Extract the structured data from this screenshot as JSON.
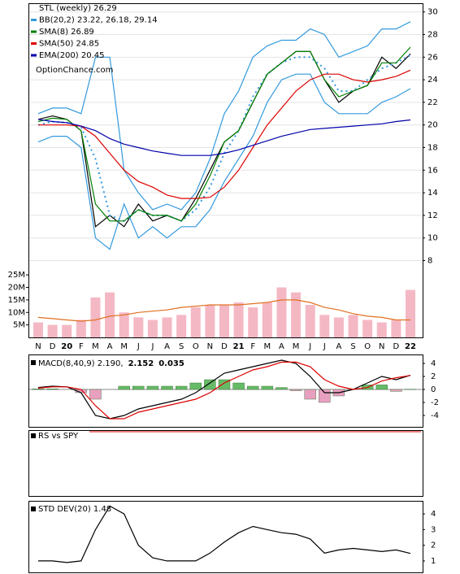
{
  "chart_data": [
    {
      "type": "line",
      "title": "STL (weekly) 26.29",
      "note_text": "OptionChance.com",
      "ylim": [
        7.1,
        30.7
      ],
      "yticks": [
        8,
        10,
        12,
        14,
        16,
        18,
        20,
        22,
        24,
        26,
        28,
        30
      ],
      "grid": true,
      "series": [
        {
          "name": "STL (weekly) 26.29",
          "color": "#000000",
          "values": [
            20.5,
            20.8,
            20.5,
            19.5,
            11,
            12,
            11,
            13,
            11.5,
            12,
            11.5,
            13.5,
            16,
            18.5,
            19.5,
            22,
            24.5,
            25.5,
            26.5,
            26.5,
            24,
            22,
            23,
            23.5,
            26,
            25,
            26.29
          ]
        },
        {
          "name": "BB(20,2) 23.22, 26.18, 29.14",
          "color": "#3399dd",
          "upper": [
            21,
            21.5,
            21.5,
            21,
            26,
            26,
            16,
            14,
            12.5,
            13,
            12.5,
            14,
            17,
            21,
            23,
            26,
            27,
            27.5,
            27.5,
            28.5,
            28,
            26,
            26.5,
            27,
            28.5,
            28.5,
            29.14
          ],
          "middle": [
            20,
            20.3,
            20.2,
            19.8,
            17,
            12,
            11.5,
            12.5,
            12,
            12,
            11.5,
            12.5,
            14.5,
            17.5,
            19.5,
            22.5,
            24.5,
            25.5,
            26,
            26,
            25,
            23,
            23,
            24,
            25,
            25.5,
            26.18
          ],
          "lower": [
            18.5,
            19,
            19,
            18,
            10,
            9,
            13,
            10,
            11,
            10,
            11,
            11,
            12.5,
            15,
            17,
            19,
            22,
            24,
            24.5,
            24.5,
            22,
            21,
            21,
            21,
            22,
            22.5,
            23.22
          ]
        },
        {
          "name": "SMA(8) 26.89",
          "color": "#008000",
          "values": [
            20.3,
            20.6,
            20.5,
            19.5,
            13,
            11.5,
            11.5,
            12.5,
            12,
            12,
            11.5,
            13,
            15.5,
            18.5,
            19.5,
            22,
            24.5,
            25.5,
            26.5,
            26.5,
            24,
            22.5,
            23,
            23.5,
            25.5,
            25.5,
            26.89
          ]
        },
        {
          "name": "SMA(50) 24.85",
          "color": "#dd0000",
          "values": [
            20,
            20,
            20,
            19.9,
            19,
            17.5,
            16,
            15,
            14.5,
            13.8,
            13.5,
            13.5,
            13.6,
            14.5,
            16,
            18,
            20,
            21.5,
            23,
            24,
            24.5,
            24.5,
            24,
            23.8,
            24,
            24.3,
            24.85
          ]
        },
        {
          "name": "EMA(200) 20.45",
          "color": "#0000aa",
          "values": [
            20.5,
            20.3,
            20.2,
            19.9,
            19.5,
            18.8,
            18.3,
            18,
            17.7,
            17.5,
            17.3,
            17.3,
            17.3,
            17.5,
            17.8,
            18.2,
            18.6,
            19,
            19.3,
            19.6,
            19.7,
            19.8,
            19.9,
            20,
            20.1,
            20.3,
            20.45
          ]
        }
      ]
    },
    {
      "type": "bar",
      "categories": [
        "N",
        "D",
        "20",
        "F",
        "M",
        "A",
        "M",
        "J",
        "J",
        "A",
        "S",
        "O",
        "N",
        "D",
        "21",
        "F",
        "M",
        "A",
        "M",
        "J",
        "J",
        "A",
        "S",
        "O",
        "N",
        "D",
        "22"
      ],
      "ylim": [
        0,
        27000000
      ],
      "yticks": [
        {
          "value": 5000000,
          "label": "5M"
        },
        {
          "value": 10000000,
          "label": "10M"
        },
        {
          "value": 15000000,
          "label": "15M"
        },
        {
          "value": 20000000,
          "label": "20M"
        },
        {
          "value": 25000000,
          "label": "25M"
        }
      ],
      "color": "#f4b8c4",
      "values": [
        6000000,
        5000000,
        5000000,
        7000000,
        16000000,
        18000000,
        10000000,
        8000000,
        7000000,
        8000000,
        9000000,
        12000000,
        13000000,
        13000000,
        14000000,
        12000000,
        14000000,
        20000000,
        18000000,
        13000000,
        9000000,
        8000000,
        9000000,
        7000000,
        6000000,
        7000000,
        19000000
      ],
      "average": {
        "color": "#e07020",
        "values": [
          8000000,
          7500000,
          7000000,
          6500000,
          7000000,
          8500000,
          9000000,
          10000000,
          10500000,
          11000000,
          12000000,
          12500000,
          13000000,
          13000000,
          13000000,
          13500000,
          14000000,
          15000000,
          15000000,
          14000000,
          12000000,
          11000000,
          9500000,
          8500000,
          8000000,
          7000000,
          7000000
        ]
      }
    },
    {
      "type": "macd",
      "legend": [
        "MACD(8,40,9) 2.190,",
        "2.152",
        "0.035"
      ],
      "ylim": [
        -5.75,
        5.25
      ],
      "yticks": [
        4,
        2,
        0,
        -2,
        -4
      ],
      "series": [
        {
          "name": "MACD",
          "color": "#000000",
          "values": [
            0.3,
            0.5,
            0.4,
            -0.5,
            -4,
            -4.5,
            -4,
            -3,
            -2.5,
            -2,
            -1.5,
            -0.5,
            1,
            2.5,
            3,
            3.5,
            4,
            4.5,
            4,
            2,
            -0.5,
            -0.5,
            0,
            1,
            2,
            1.5,
            2.19
          ]
        },
        {
          "name": "Signal",
          "color": "#dd0000",
          "values": [
            0.2,
            0.4,
            0.4,
            0,
            -2.5,
            -4.5,
            -4.5,
            -3.5,
            -3,
            -2.5,
            -2,
            -1.5,
            -0.5,
            1,
            2,
            3,
            3.5,
            4.2,
            4.2,
            3.5,
            1.5,
            0.5,
            0,
            0.3,
            1.3,
            1.8,
            2.152
          ]
        },
        {
          "name": "Histogram",
          "color": "#66bb66",
          "values": [
            0.1,
            0.1,
            0,
            -0.5,
            -1.5,
            0,
            0.5,
            0.5,
            0.5,
            0.5,
            0.5,
            1,
            1.5,
            1.5,
            1,
            0.5,
            0.5,
            0.3,
            -0.2,
            -1.5,
            -2,
            -1,
            0,
            0.7,
            0.7,
            -0.3,
            0.035
          ]
        }
      ]
    },
    {
      "type": "panel",
      "title": "RS vs SPY"
    },
    {
      "type": "line",
      "title": "STD DEV(20) 1.48",
      "ylim": [
        0.22,
        4.78
      ],
      "yticks": [
        1,
        2,
        3,
        4
      ],
      "series": [
        {
          "color": "#000000",
          "values": [
            1,
            1,
            0.9,
            1,
            3,
            4.5,
            4,
            2,
            1.2,
            1,
            1,
            1,
            1.5,
            2.2,
            2.8,
            3.2,
            3,
            2.8,
            2.7,
            2.4,
            1.5,
            1.7,
            1.8,
            1.7,
            1.6,
            1.7,
            1.48
          ]
        }
      ]
    }
  ]
}
